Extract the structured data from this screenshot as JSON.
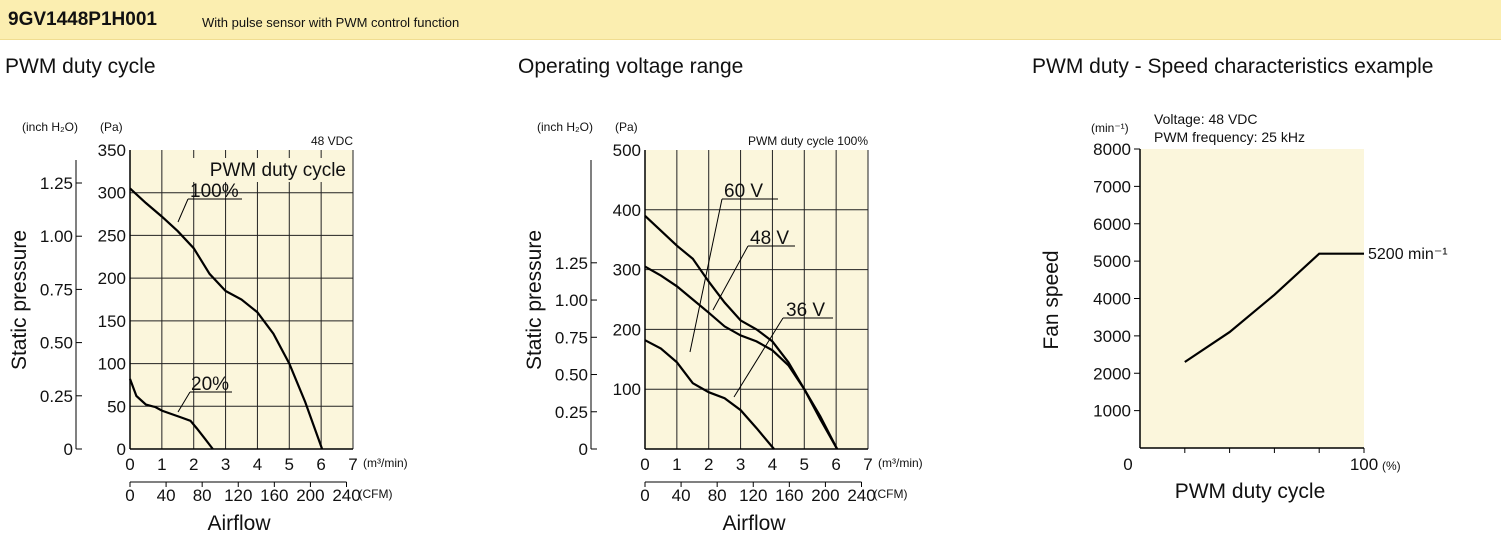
{
  "header": {
    "model": "9GV1448P1H001",
    "description": "With pulse sensor with PWM control function"
  },
  "chart_data": [
    {
      "type": "line",
      "title": "PWM duty cycle",
      "annotation": "48 VDC",
      "legend_title": "PWM duty cycle",
      "ylabel": "Static pressure",
      "xlabel": "Airflow",
      "y_unit_pa": "(Pa)",
      "y_unit_inch": "(inch H₂O)",
      "x_unit_m3": "(m³/min)",
      "x_unit_cfm": "(CFM)",
      "xlim": [
        0,
        7
      ],
      "ylim": [
        0,
        350
      ],
      "x_ticks_m3": [
        "0",
        "1",
        "2",
        "3",
        "4",
        "5",
        "6",
        "7"
      ],
      "y_ticks_pa": [
        "0",
        "50",
        "100",
        "150",
        "200",
        "250",
        "300",
        "350"
      ],
      "y_ticks_inch": [
        "0",
        "0.25",
        "0.50",
        "0.75",
        "1.00",
        "1.25"
      ],
      "x_ticks_cfm": [
        "0",
        "40",
        "80",
        "120",
        "160",
        "200",
        "240"
      ],
      "series": [
        {
          "name": "100%",
          "x": [
            0,
            0.5,
            1,
            1.5,
            2,
            2.5,
            3,
            3.5,
            4,
            4.5,
            5,
            5.5,
            6.03
          ],
          "y": [
            305,
            288,
            272,
            255,
            235,
            205,
            185,
            175,
            160,
            135,
            100,
            55,
            0
          ]
        },
        {
          "name": "20%",
          "x": [
            0,
            0.2,
            0.5,
            0.8,
            1,
            1.3,
            1.6,
            1.9,
            2.1,
            2.35,
            2.6
          ],
          "y": [
            82,
            62,
            52,
            49,
            45,
            41,
            37,
            33,
            24,
            12,
            0
          ]
        }
      ]
    },
    {
      "type": "line",
      "title": "Operating voltage range",
      "annotation": "PWM duty cycle 100%",
      "ylabel": "Static pressure",
      "xlabel": "Airflow",
      "y_unit_pa": "(Pa)",
      "y_unit_inch": "(inch H₂O)",
      "x_unit_m3": "(m³/min)",
      "x_unit_cfm": "(CFM)",
      "xlim": [
        0,
        7
      ],
      "ylim": [
        0,
        500
      ],
      "x_ticks_m3": [
        "0",
        "1",
        "2",
        "3",
        "4",
        "5",
        "6",
        "7"
      ],
      "y_ticks_pa": [
        "100",
        "200",
        "300",
        "400",
        "500"
      ],
      "y_ticks_inch": [
        "0",
        "0.25",
        "0.50",
        "0.75",
        "1.00",
        "1.25"
      ],
      "x_ticks_cfm": [
        "0",
        "40",
        "80",
        "120",
        "160",
        "200",
        "240"
      ],
      "series": [
        {
          "name": "60 V",
          "x": [
            0,
            0.5,
            1,
            1.5,
            2,
            2.5,
            3,
            3.5,
            4,
            4.5,
            5,
            5.5,
            6.03
          ],
          "y": [
            390,
            365,
            340,
            318,
            280,
            245,
            215,
            200,
            180,
            145,
            100,
            50,
            0
          ]
        },
        {
          "name": "48 V",
          "x": [
            0,
            0.5,
            1,
            1.5,
            2,
            2.5,
            3,
            3.5,
            4,
            4.5,
            5,
            5.5,
            6.03
          ],
          "y": [
            305,
            290,
            272,
            250,
            228,
            205,
            190,
            180,
            165,
            140,
            100,
            55,
            0
          ]
        },
        {
          "name": "36 V",
          "x": [
            0,
            0.5,
            1,
            1.5,
            2,
            2.5,
            3,
            3.5,
            4.05
          ],
          "y": [
            182,
            168,
            145,
            110,
            95,
            85,
            65,
            35,
            0
          ]
        }
      ]
    },
    {
      "type": "line",
      "title": "PWM duty - Speed characteristics example",
      "annotation_line1": "Voltage: 48 VDC",
      "annotation_line2": "PWM frequency: 25 kHz",
      "ylabel": "Fan speed",
      "xlabel": "PWM duty cycle",
      "y_unit": "(min⁻¹)",
      "x_unit": "(%)",
      "xlim": [
        0,
        100
      ],
      "ylim": [
        0,
        8000
      ],
      "x_tick_labels": [
        "0",
        "100"
      ],
      "y_ticks": [
        "1000",
        "2000",
        "3000",
        "4000",
        "5000",
        "6000",
        "7000",
        "8000"
      ],
      "end_label": "5200 min⁻¹",
      "series": [
        {
          "x": [
            20,
            40,
            60,
            80,
            100
          ],
          "y": [
            2300,
            3100,
            4100,
            5200,
            5200
          ]
        }
      ]
    }
  ],
  "colors": {
    "plot_bg": "#fbf6dc",
    "header_bg": "#fbeeb0",
    "line": "#000000"
  }
}
